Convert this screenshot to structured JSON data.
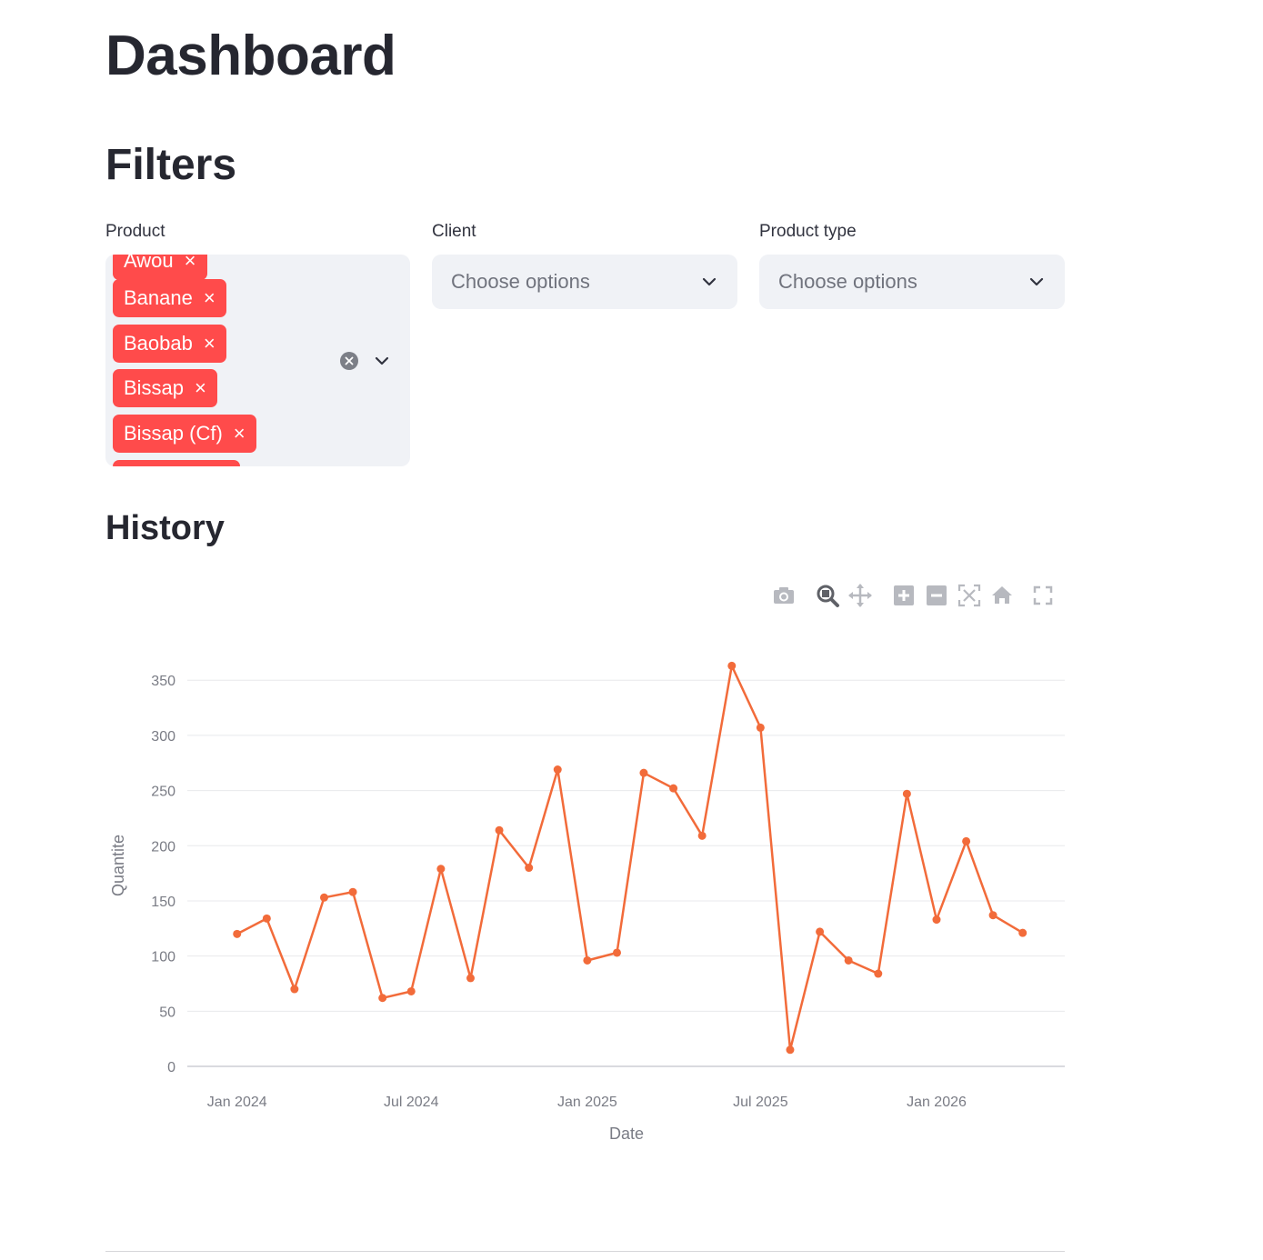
{
  "page": {
    "title": "Dashboard",
    "filters_heading": "Filters",
    "history_heading": "History"
  },
  "filters": {
    "product": {
      "label": "Product",
      "selected": [
        "Awou",
        "Banane",
        "Baobab",
        "Bissap",
        "Bissap (Cf)",
        ""
      ],
      "tag_remove_glyph": "×"
    },
    "client": {
      "label": "Client",
      "placeholder": "Choose options"
    },
    "product_type": {
      "label": "Product type",
      "placeholder": "Choose options"
    }
  },
  "toolbar": {
    "icons": [
      "camera-icon",
      "zoom-icon",
      "pan-icon",
      "zoom-in-icon",
      "zoom-out-icon",
      "autoscale-icon",
      "home-icon",
      "fullscreen-icon"
    ]
  },
  "chart_data": {
    "type": "line",
    "xlabel": "Date",
    "ylabel": "Quantite",
    "ylim": [
      0,
      365
    ],
    "yticks": [
      0,
      50,
      100,
      150,
      200,
      250,
      300,
      350
    ],
    "xticks": [
      {
        "date": "2024-01-01",
        "label": "Jan 2024"
      },
      {
        "date": "2024-07-01",
        "label": "Jul 2024"
      },
      {
        "date": "2025-01-01",
        "label": "Jan 2025"
      },
      {
        "date": "2025-07-01",
        "label": "Jul 2025"
      },
      {
        "date": "2026-01-01",
        "label": "Jan 2026"
      }
    ],
    "xlim": [
      "2023-11-10",
      "2026-05-15"
    ],
    "color": "#f26b3a",
    "grid": true,
    "series": [
      {
        "x": [
          "2024-01-01",
          "2024-02-01",
          "2024-03-01",
          "2024-04-01",
          "2024-05-01",
          "2024-06-01",
          "2024-07-01",
          "2024-08-01",
          "2024-09-01",
          "2024-10-01",
          "2024-11-01",
          "2024-12-01",
          "2025-01-01",
          "2025-02-01",
          "2025-03-01",
          "2025-04-01",
          "2025-05-01",
          "2025-06-01",
          "2025-07-01",
          "2025-08-01",
          "2025-09-01",
          "2025-10-01",
          "2025-11-01",
          "2025-12-01",
          "2026-01-01",
          "2026-02-01",
          "2026-03-01",
          "2026-04-01"
        ],
        "y": [
          120,
          134,
          70,
          153,
          158,
          62,
          68,
          179,
          80,
          214,
          180,
          269,
          96,
          103,
          266,
          252,
          209,
          363,
          307,
          15,
          122,
          96,
          84,
          247,
          133,
          204,
          137,
          121
        ]
      }
    ]
  }
}
